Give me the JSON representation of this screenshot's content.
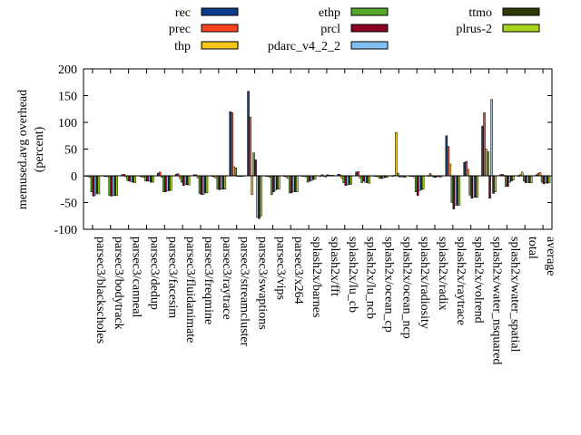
{
  "chart_data": {
    "type": "bar",
    "ylabel": "memused.avg overhead (percent)",
    "ylabel_lines": [
      "memused.avg overhead",
      "(percent)"
    ],
    "ylim": [
      -100,
      200
    ],
    "yticks": [
      -100,
      -50,
      0,
      50,
      100,
      150,
      200
    ],
    "grid": false,
    "legend_position": "top",
    "categories": [
      "parsec3/blackscholes",
      "parsec3/bodytrack",
      "parsec3/canneal",
      "parsec3/dedup",
      "parsec3/facesim",
      "parsec3/fluidanimate",
      "parsec3/freqmine",
      "parsec3/raytrace",
      "parsec3/streamcluster",
      "parsec3/swaptions",
      "parsec3/vips",
      "parsec3/x264",
      "splash2x/barnes",
      "splash2x/fft",
      "splash2x/lu_cb",
      "splash2x/lu_ncb",
      "splash2x/ocean_cp",
      "splash2x/ocean_ncp",
      "splash2x/radiosity",
      "splash2x/radix",
      "splash2x/raytrace",
      "splash2x/volrend",
      "splash2x/water_nsquared",
      "splash2x/water_spatial",
      "total",
      "average"
    ],
    "series": [
      {
        "name": "rec",
        "color": "#0b3c8c",
        "values": [
          -1,
          -1,
          2,
          -1,
          5,
          3,
          2,
          -1,
          120,
          158,
          -1,
          -1,
          -1,
          -1,
          3,
          7,
          -1,
          -1,
          -1,
          -1,
          75,
          25,
          93,
          2,
          -1,
          2
        ]
      },
      {
        "name": "prec",
        "color": "#ff4422",
        "values": [
          -1,
          -1,
          3,
          -2,
          7,
          4,
          2,
          -2,
          118,
          110,
          -1,
          -2,
          -1,
          2,
          2,
          8,
          -1,
          1,
          -1,
          4,
          55,
          27,
          118,
          3,
          2,
          5
        ]
      },
      {
        "name": "thp",
        "color": "#f5c518",
        "values": [
          -3,
          -2,
          -2,
          -3,
          -3,
          -5,
          -4,
          -4,
          17,
          -35,
          -3,
          -5,
          -2,
          -1,
          -5,
          -4,
          -2,
          81,
          -2,
          -1,
          22,
          12,
          50,
          1,
          7,
          6
        ]
      },
      {
        "name": "ethp",
        "color": "#55a829",
        "values": [
          -30,
          -37,
          -9,
          -10,
          -30,
          -12,
          -33,
          -25,
          15,
          43,
          -35,
          -32,
          -12,
          -2,
          -13,
          -13,
          -5,
          5,
          -30,
          -3,
          -50,
          -36,
          45,
          -20,
          -10,
          -12
        ]
      },
      {
        "name": "prcl",
        "color": "#8a0022",
        "values": [
          -38,
          -38,
          -10,
          -10,
          -30,
          -18,
          -35,
          -26,
          0,
          30,
          -30,
          -32,
          -10,
          2,
          -18,
          -10,
          -5,
          -2,
          -37,
          -3,
          -62,
          -42,
          -42,
          -20,
          -13,
          -15
        ]
      },
      {
        "name": "pdarc_v4_2_2",
        "color": "#7fbff2",
        "values": [
          -36,
          -37,
          -11,
          -10,
          -28,
          -16,
          -35,
          -25,
          0,
          -78,
          -27,
          -29,
          -9,
          1,
          -17,
          -12,
          -4,
          -2,
          -28,
          -1,
          -55,
          -40,
          143,
          -12,
          -12,
          -13
        ]
      },
      {
        "name": "ttmo",
        "color": "#2c3b06",
        "values": [
          -33,
          -37,
          -12,
          -12,
          -28,
          -17,
          -32,
          -25,
          -1,
          -80,
          -25,
          -30,
          -7,
          1,
          -16,
          -13,
          -3,
          -2,
          -26,
          -2,
          -55,
          -40,
          -33,
          -10,
          -13,
          -14
        ]
      },
      {
        "name": "plrus-2",
        "color": "#a8d61e",
        "values": [
          -34,
          -37,
          -13,
          -12,
          -27,
          -17,
          -32,
          -25,
          -1,
          -75,
          -25,
          -30,
          -6,
          1,
          -16,
          -14,
          -3,
          -3,
          -25,
          -2,
          -55,
          -40,
          -30,
          -8,
          -13,
          -13
        ]
      }
    ]
  }
}
